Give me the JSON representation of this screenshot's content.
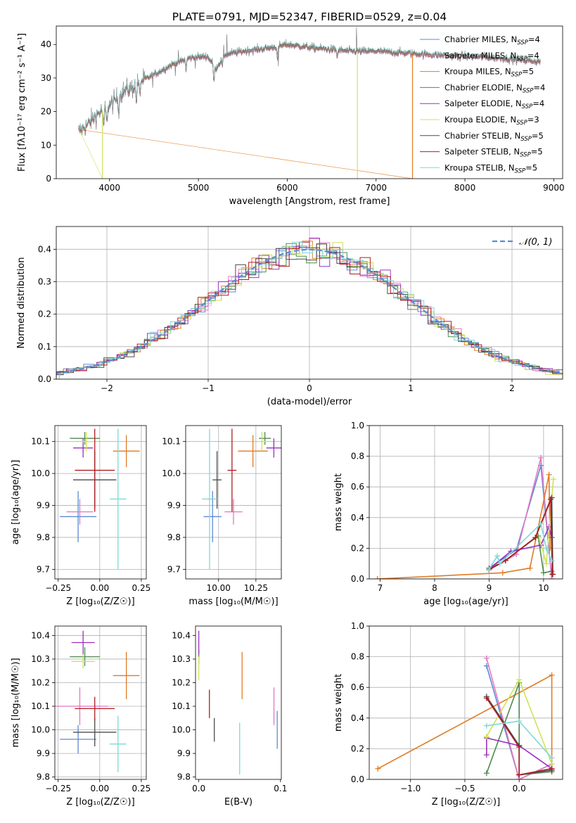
{
  "colors": {
    "Chabrier MILES": "#5b8bd4",
    "Salpeter MILES": "#e377c2",
    "Kroupa MILES": "#e07b25",
    "Chabrier ELODIE": "#4f8a4f",
    "Salpeter ELODIE": "#9b30c0",
    "Kroupa ELODIE": "#cde35a",
    "Chabrier STELIB": "#4a4a4a",
    "Salpeter STELIB": "#b01c20",
    "Kroupa STELIB": "#7fd8d8",
    "normal": "#5b8bd4"
  },
  "chart_data": [
    {
      "id": "spectrum",
      "type": "line",
      "title": "PLATE=0791, MJD=52347, FIBERID=0529, z=0.04",
      "xlabel": "wavelength [Angstrom, rest frame]",
      "ylabel": "Flux [fλ10⁻¹⁷ erg cm⁻² s⁻¹ A⁻¹]",
      "xlim": [
        3400,
        9100
      ],
      "ylim": [
        0,
        45.5
      ],
      "xticks": [
        4000,
        5000,
        6000,
        7000,
        8000,
        9000
      ],
      "yticks": [
        0,
        10,
        20,
        30,
        40
      ],
      "legend_position": "upper-right",
      "legend": [
        {
          "series": "Chabrier MILES",
          "label": "Chabrier MILES, N",
          "sub": "SSP",
          "tail": "=4"
        },
        {
          "series": "Salpeter MILES",
          "label": "Salpeter MILES, N",
          "sub": "SSP",
          "tail": "=4"
        },
        {
          "series": "Kroupa MILES",
          "label": "Kroupa MILES, N",
          "sub": "SSP",
          "tail": "=5"
        },
        {
          "series": "Chabrier ELODIE",
          "label": "Chabrier ELODIE, N",
          "sub": "SSP",
          "tail": "=4"
        },
        {
          "series": "Salpeter ELODIE",
          "label": "Salpeter ELODIE, N",
          "sub": "SSP",
          "tail": "=4"
        },
        {
          "series": "Kroupa ELODIE",
          "label": "Kroupa ELODIE, N",
          "sub": "SSP",
          "tail": "=3"
        },
        {
          "series": "Chabrier STELIB",
          "label": "Chabrier STELIB, N",
          "sub": "SSP",
          "tail": "=5"
        },
        {
          "series": "Salpeter STELIB",
          "label": "Salpeter STELIB, N",
          "sub": "SSP",
          "tail": "=5"
        },
        {
          "series": "Kroupa STELIB",
          "label": "Kroupa STELIB, N",
          "sub": "SSP",
          "tail": "=5"
        }
      ],
      "continuum": [
        [
          3650,
          14
        ],
        [
          3750,
          16
        ],
        [
          3850,
          19
        ],
        [
          3950,
          21
        ],
        [
          4050,
          23
        ],
        [
          4150,
          26
        ],
        [
          4250,
          27
        ],
        [
          4350,
          29
        ],
        [
          4500,
          31
        ],
        [
          4700,
          34
        ],
        [
          4900,
          36
        ],
        [
          5100,
          36.5
        ],
        [
          5200,
          33
        ],
        [
          5300,
          37
        ],
        [
          5500,
          38
        ],
        [
          5800,
          39
        ],
        [
          6000,
          40
        ],
        [
          6300,
          39
        ],
        [
          6500,
          38.5
        ],
        [
          6700,
          38
        ],
        [
          7000,
          38
        ],
        [
          7300,
          37.5
        ],
        [
          7600,
          37
        ],
        [
          8000,
          36.5
        ],
        [
          8400,
          36
        ],
        [
          8800,
          35
        ]
      ],
      "drop_series": [
        {
          "series": "Kroupa ELODIE",
          "x_range": [
            3650,
            3920
          ]
        },
        {
          "series": "Kroupa ELODIE",
          "x_range": [
            6790,
            6800
          ]
        },
        {
          "series": "Kroupa MILES",
          "x_range": [
            3650,
            7410
          ]
        }
      ]
    },
    {
      "id": "residuals",
      "type": "histogram",
      "xlabel": "(data-model)/error",
      "ylabel": "Normed distribution",
      "xlim": [
        -2.5,
        2.5
      ],
      "ylim": [
        0,
        0.47
      ],
      "xticks": [
        -2,
        -1,
        0,
        1,
        2
      ],
      "yticks": [
        0,
        0.1,
        0.2,
        0.3,
        0.4
      ],
      "grid": true,
      "legend_position": "upper-right",
      "legend": [
        {
          "label": "𝒩(0, 1)"
        }
      ],
      "bin_width": 0.1
    },
    {
      "id": "age_vs_Z",
      "type": "errorbar",
      "xlabel": "Z [log₁₀(Z/Z☉)]",
      "ylabel": "age  [log₁₀(age/yr)]",
      "xlim": [
        -0.27,
        0.28
      ],
      "ylim": [
        9.67,
        10.15
      ],
      "xticks": [
        -0.25,
        0,
        0.25
      ],
      "xtick_labels": [
        "−0.25",
        "0.00",
        "0.25"
      ],
      "yticks": [
        9.7,
        9.8,
        9.9,
        10.0,
        10.1
      ],
      "grid": true,
      "points": [
        {
          "series": "Chabrier MILES",
          "x": -0.13,
          "xerr": 0.11,
          "y": 9.865,
          "yerr": 0.08
        },
        {
          "series": "Salpeter MILES",
          "x": -0.12,
          "xerr": 0.08,
          "y": 9.88,
          "yerr": 0.04
        },
        {
          "series": "Kroupa MILES",
          "x": 0.16,
          "xerr": 0.08,
          "y": 10.07,
          "yerr": 0.05
        },
        {
          "series": "Chabrier ELODIE",
          "x": -0.09,
          "xerr": 0.09,
          "y": 10.11,
          "yerr": 0.02
        },
        {
          "series": "Salpeter ELODIE",
          "x": -0.1,
          "xerr": 0.06,
          "y": 10.08,
          "yerr": 0.03
        },
        {
          "series": "Kroupa ELODIE",
          "x": -0.08,
          "xerr": 0.04,
          "y": 10.1,
          "yerr": 0.03
        },
        {
          "series": "Chabrier STELIB",
          "x": -0.03,
          "xerr": 0.13,
          "y": 9.98,
          "yerr": 0.09
        },
        {
          "series": "Salpeter STELIB",
          "x": -0.03,
          "xerr": 0.12,
          "y": 10.01,
          "yerr": 0.13
        },
        {
          "series": "Kroupa STELIB",
          "x": 0.11,
          "xerr": 0.05,
          "y": 9.92,
          "yerr": 0.22
        }
      ]
    },
    {
      "id": "age_vs_mass",
      "type": "errorbar",
      "xlabel": "mass [log₁₀(M/M☉)]",
      "ylabel": "",
      "xlim": [
        9.78,
        10.42
      ],
      "ylim": [
        9.67,
        10.15
      ],
      "xticks": [
        10.0,
        10.25
      ],
      "xtick_labels": [
        "10.00",
        "10.25"
      ],
      "yticks": [
        9.7,
        9.8,
        9.9,
        10.0,
        10.1
      ],
      "grid": true,
      "points": [
        {
          "series": "Chabrier MILES",
          "x": 9.96,
          "xerr": 0.06,
          "y": 9.865,
          "yerr": 0.08
        },
        {
          "series": "Salpeter MILES",
          "x": 10.1,
          "xerr": 0.06,
          "y": 9.88,
          "yerr": 0.04
        },
        {
          "series": "Kroupa MILES",
          "x": 10.23,
          "xerr": 0.1,
          "y": 10.07,
          "yerr": 0.05
        },
        {
          "series": "Chabrier ELODIE",
          "x": 10.31,
          "xerr": 0.04,
          "y": 10.11,
          "yerr": 0.02
        },
        {
          "series": "Salpeter ELODIE",
          "x": 10.37,
          "xerr": 0.05,
          "y": 10.08,
          "yerr": 0.03
        },
        {
          "series": "Kroupa ELODIE",
          "x": 10.29,
          "xerr": 0.03,
          "y": 10.1,
          "yerr": 0.03
        },
        {
          "series": "Chabrier STELIB",
          "x": 9.99,
          "xerr": 0.03,
          "y": 9.98,
          "yerr": 0.09
        },
        {
          "series": "Salpeter STELIB",
          "x": 10.09,
          "xerr": 0.03,
          "y": 10.01,
          "yerr": 0.13
        },
        {
          "series": "Kroupa STELIB",
          "x": 9.94,
          "xerr": 0.05,
          "y": 9.92,
          "yerr": 0.22
        }
      ]
    },
    {
      "id": "weight_vs_age",
      "type": "line",
      "xlabel": "age  [log₁₀(age/yr)]",
      "ylabel": "mass weight",
      "xlim": [
        6.8,
        10.35
      ],
      "ylim": [
        0,
        1.0
      ],
      "xticks": [
        7,
        8,
        9,
        10
      ],
      "yticks": [
        0,
        0.2,
        0.4,
        0.6,
        0.8,
        1.0
      ],
      "grid": true,
      "series": [
        {
          "name": "Chabrier MILES",
          "points": [
            [
              9.0,
              0.07
            ],
            [
              9.5,
              0.19
            ],
            [
              9.95,
              0.74
            ],
            [
              10.15,
              0.0
            ]
          ]
        },
        {
          "name": "Salpeter MILES",
          "points": [
            [
              9.0,
              0.06
            ],
            [
              9.5,
              0.16
            ],
            [
              9.95,
              0.79
            ],
            [
              10.15,
              0.0
            ]
          ]
        },
        {
          "name": "Kroupa MILES",
          "points": [
            [
              6.95,
              0.0
            ],
            [
              9.25,
              0.04
            ],
            [
              9.75,
              0.07
            ],
            [
              10.1,
              0.68
            ],
            [
              10.12,
              0.2
            ]
          ]
        },
        {
          "name": "Chabrier ELODIE",
          "points": [
            [
              9.0,
              0.07
            ],
            [
              9.3,
              0.12
            ],
            [
              9.9,
              0.28
            ],
            [
              10.0,
              0.04
            ],
            [
              10.15,
              0.05
            ]
          ]
        },
        {
          "name": "Salpeter ELODIE",
          "points": [
            [
              9.05,
              0.08
            ],
            [
              9.4,
              0.18
            ],
            [
              9.95,
              0.22
            ],
            [
              10.1,
              0.34
            ],
            [
              10.15,
              0.27
            ]
          ]
        },
        {
          "name": "Kroupa ELODIE",
          "points": [
            [
              9.92,
              0.27
            ],
            [
              10.05,
              0.1
            ],
            [
              10.18,
              0.65
            ]
          ]
        },
        {
          "name": "Chabrier STELIB",
          "points": [
            [
              9.0,
              0.06
            ],
            [
              9.3,
              0.12
            ],
            [
              9.85,
              0.27
            ],
            [
              10.15,
              0.53
            ],
            [
              10.17,
              0.03
            ]
          ]
        },
        {
          "name": "Salpeter STELIB",
          "points": [
            [
              9.0,
              0.06
            ],
            [
              9.3,
              0.12
            ],
            [
              9.85,
              0.27
            ],
            [
              10.13,
              0.52
            ],
            [
              10.16,
              0.03
            ]
          ]
        },
        {
          "name": "Kroupa STELIB",
          "points": [
            [
              9.0,
              0.06
            ],
            [
              9.15,
              0.15
            ],
            [
              9.2,
              0.1
            ],
            [
              9.95,
              0.36
            ],
            [
              10.05,
              0.2
            ],
            [
              10.15,
              0.12
            ]
          ]
        }
      ]
    },
    {
      "id": "mass_vs_Z",
      "type": "errorbar",
      "xlabel": "Z [log₁₀(Z/Z☉)]",
      "ylabel": "mass [log₁₀(M/M☉)]",
      "xlim": [
        -0.27,
        0.28
      ],
      "ylim": [
        9.79,
        10.44
      ],
      "xticks": [
        -0.25,
        0,
        0.25
      ],
      "xtick_labels": [
        "−0.25",
        "0.00",
        "0.25"
      ],
      "yticks": [
        9.8,
        9.9,
        10.0,
        10.1,
        10.2,
        10.3,
        10.4
      ],
      "grid": true,
      "points": [
        {
          "series": "Chabrier MILES",
          "x": -0.13,
          "xerr": 0.11,
          "y": 9.96,
          "yerr": 0.06
        },
        {
          "series": "Salpeter MILES",
          "x": -0.12,
          "xerr": 0.17,
          "y": 10.1,
          "yerr": 0.08
        },
        {
          "series": "Kroupa MILES",
          "x": 0.16,
          "xerr": 0.08,
          "y": 10.23,
          "yerr": 0.1
        },
        {
          "series": "Chabrier ELODIE",
          "x": -0.09,
          "xerr": 0.09,
          "y": 10.31,
          "yerr": 0.04
        },
        {
          "series": "Salpeter ELODIE",
          "x": -0.1,
          "xerr": 0.07,
          "y": 10.37,
          "yerr": 0.05
        },
        {
          "series": "Kroupa ELODIE",
          "x": -0.1,
          "xerr": 0.07,
          "y": 10.29,
          "yerr": 0.03
        },
        {
          "series": "Chabrier STELIB",
          "x": -0.03,
          "xerr": 0.13,
          "y": 9.99,
          "yerr": 0.06
        },
        {
          "series": "Salpeter STELIB",
          "x": -0.03,
          "xerr": 0.12,
          "y": 10.09,
          "yerr": 0.05
        },
        {
          "series": "Kroupa STELIB",
          "x": 0.11,
          "xerr": 0.05,
          "y": 9.94,
          "yerr": 0.12
        }
      ]
    },
    {
      "id": "mass_vs_EBV",
      "type": "errorbar",
      "xlabel": "E(B-V)",
      "ylabel": "",
      "xlim": [
        -0.004,
        0.101
      ],
      "ylim": [
        9.79,
        10.44
      ],
      "xticks": [
        0.0,
        0.1
      ],
      "xtick_labels": [
        "0.0",
        "0.1"
      ],
      "yticks": [
        9.8,
        9.9,
        10.0,
        10.1,
        10.2,
        10.3,
        10.4
      ],
      "grid": false,
      "points": [
        {
          "series": "Chabrier MILES",
          "x": 0.096,
          "xerr": 0,
          "y": 10.0,
          "yerr": 0.08
        },
        {
          "series": "Salpeter MILES",
          "x": 0.092,
          "xerr": 0,
          "y": 10.1,
          "yerr": 0.08
        },
        {
          "series": "Kroupa MILES",
          "x": 0.053,
          "xerr": 0,
          "y": 10.23,
          "yerr": 0.1
        },
        {
          "series": "Chabrier ELODIE",
          "x": 0.0,
          "xerr": 0,
          "y": 10.31,
          "yerr": 0.03
        },
        {
          "series": "Salpeter ELODIE",
          "x": 0.0,
          "xerr": 0,
          "y": 10.37,
          "yerr": 0.05
        },
        {
          "series": "Kroupa ELODIE",
          "x": 0.0,
          "xerr": 0,
          "y": 10.26,
          "yerr": 0.05
        },
        {
          "series": "Chabrier STELIB",
          "x": 0.019,
          "xerr": 0,
          "y": 10.0,
          "yerr": 0.05
        },
        {
          "series": "Salpeter STELIB",
          "x": 0.013,
          "xerr": 0,
          "y": 10.11,
          "yerr": 0.06
        },
        {
          "series": "Kroupa STELIB",
          "x": 0.05,
          "xerr": 0,
          "y": 9.92,
          "yerr": 0.11
        }
      ]
    },
    {
      "id": "weight_vs_Z",
      "type": "line",
      "xlabel": "Z [log₁₀(Z/Z☉)]",
      "ylabel": "mass weight",
      "xlim": [
        -1.38,
        0.4
      ],
      "ylim": [
        0,
        1.0
      ],
      "xticks": [
        -1.0,
        -0.5,
        0.0
      ],
      "xtick_labels": [
        "−1.0",
        "−0.5",
        "0.0"
      ],
      "yticks": [
        0,
        0.2,
        0.4,
        0.6,
        0.8,
        1.0
      ],
      "grid": true,
      "series": [
        {
          "name": "Kroupa MILES",
          "points": [
            [
              -1.3,
              0.07
            ],
            [
              0.3,
              0.68
            ],
            [
              0.3,
              0.05
            ]
          ]
        },
        {
          "name": "Chabrier MILES",
          "points": [
            [
              -0.3,
              0.74
            ],
            [
              0.0,
              0.0
            ],
            [
              0.3,
              0.1
            ]
          ]
        },
        {
          "name": "Salpeter MILES",
          "points": [
            [
              -0.3,
              0.79
            ],
            [
              0.0,
              0.0
            ],
            [
              0.3,
              0.1
            ]
          ]
        },
        {
          "name": "Chabrier ELODIE",
          "points": [
            [
              -0.3,
              0.04
            ],
            [
              0.0,
              0.63
            ],
            [
              0.0,
              0.03
            ],
            [
              0.3,
              0.05
            ]
          ]
        },
        {
          "name": "Salpeter ELODIE",
          "points": [
            [
              -0.3,
              0.16
            ],
            [
              -0.3,
              0.27
            ],
            [
              0.0,
              0.22
            ],
            [
              0.3,
              0.07
            ]
          ]
        },
        {
          "name": "Kroupa ELODIE",
          "points": [
            [
              -0.3,
              0.28
            ],
            [
              0.0,
              0.65
            ],
            [
              0.3,
              0.1
            ]
          ]
        },
        {
          "name": "Chabrier STELIB",
          "points": [
            [
              -0.3,
              0.54
            ],
            [
              0.0,
              0.22
            ],
            [
              0.0,
              0.03
            ],
            [
              0.3,
              0.06
            ]
          ]
        },
        {
          "name": "Salpeter STELIB",
          "points": [
            [
              -0.3,
              0.53
            ],
            [
              0.0,
              0.21
            ],
            [
              0.0,
              0.03
            ],
            [
              0.3,
              0.07
            ]
          ]
        },
        {
          "name": "Kroupa STELIB",
          "points": [
            [
              -0.3,
              0.35
            ],
            [
              0.0,
              0.38
            ],
            [
              0.3,
              0.14
            ]
          ]
        }
      ]
    }
  ]
}
